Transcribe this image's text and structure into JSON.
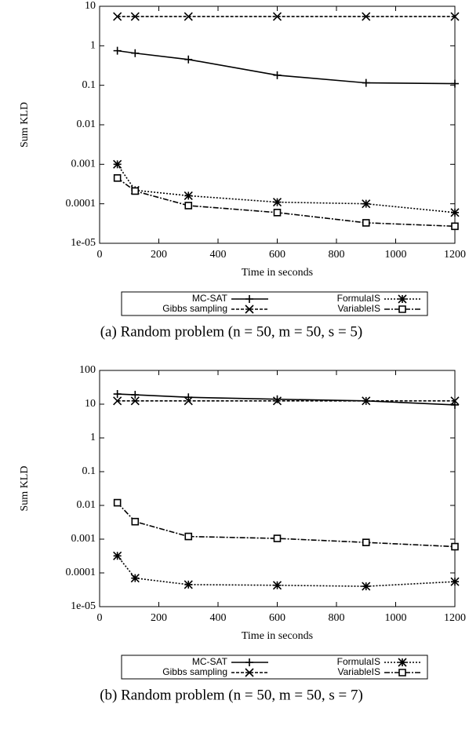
{
  "chart_data": [
    {
      "type": "line",
      "y_label": "Sum KLD",
      "x_label": "Time in seconds",
      "caption": "(a) Random problem (n = 50, m = 50, s = 5)",
      "x": [
        60,
        120,
        300,
        600,
        900,
        1200
      ],
      "xlim": [
        0,
        1200
      ],
      "xticks": [
        0,
        200,
        400,
        600,
        800,
        1000,
        1200
      ],
      "ylim": [
        1e-05,
        10
      ],
      "log_y": true,
      "yticks": [
        {
          "value": 1e-05,
          "label": "1e-05"
        },
        0.0001,
        0.001,
        0.01,
        0.1,
        1,
        10
      ],
      "series": [
        {
          "name": "MC-SAT",
          "color": "#000000",
          "values": [
            0.75,
            0.65,
            0.45,
            0.18,
            0.115,
            0.11
          ]
        },
        {
          "name": "Gibbs sampling",
          "color": "#000000",
          "values": [
            5.5,
            5.5,
            5.5,
            5.5,
            5.5,
            5.5
          ]
        },
        {
          "name": "FormulaIS",
          "color": "#000000",
          "values": [
            0.001,
            0.00022,
            0.00016,
            0.00011,
            0.0001,
            6e-05
          ]
        },
        {
          "name": "VariableIS",
          "color": "#000000",
          "values": [
            0.00045,
            0.00021,
            9e-05,
            6e-05,
            3.3e-05,
            2.7e-05
          ]
        }
      ]
    },
    {
      "type": "line",
      "y_label": "Sum KLD",
      "x_label": "Time in seconds",
      "caption": "(b) Random problem (n = 50, m = 50, s = 7)",
      "x": [
        60,
        120,
        300,
        600,
        900,
        1200
      ],
      "xlim": [
        0,
        1200
      ],
      "xticks": [
        0,
        200,
        400,
        600,
        800,
        1000,
        1200
      ],
      "ylim": [
        1e-05,
        100
      ],
      "log_y": true,
      "yticks": [
        {
          "value": 1e-05,
          "label": "1e-05"
        },
        0.0001,
        0.001,
        0.01,
        0.1,
        1,
        10,
        100
      ],
      "series": [
        {
          "name": "MC-SAT",
          "color": "#000000",
          "values": [
            20,
            19,
            16,
            14,
            12.5,
            9.5
          ]
        },
        {
          "name": "Gibbs sampling",
          "color": "#000000",
          "values": [
            12.5,
            12.5,
            12.5,
            12.5,
            12.5,
            12.5
          ]
        },
        {
          "name": "FormulaIS",
          "color": "#000000",
          "values": [
            0.00032,
            7e-05,
            4.5e-05,
            4.3e-05,
            4e-05,
            5.5e-05
          ]
        },
        {
          "name": "VariableIS",
          "color": "#000000",
          "values": [
            0.012,
            0.0033,
            0.0012,
            0.00105,
            0.0008,
            0.0006
          ]
        }
      ]
    }
  ]
}
